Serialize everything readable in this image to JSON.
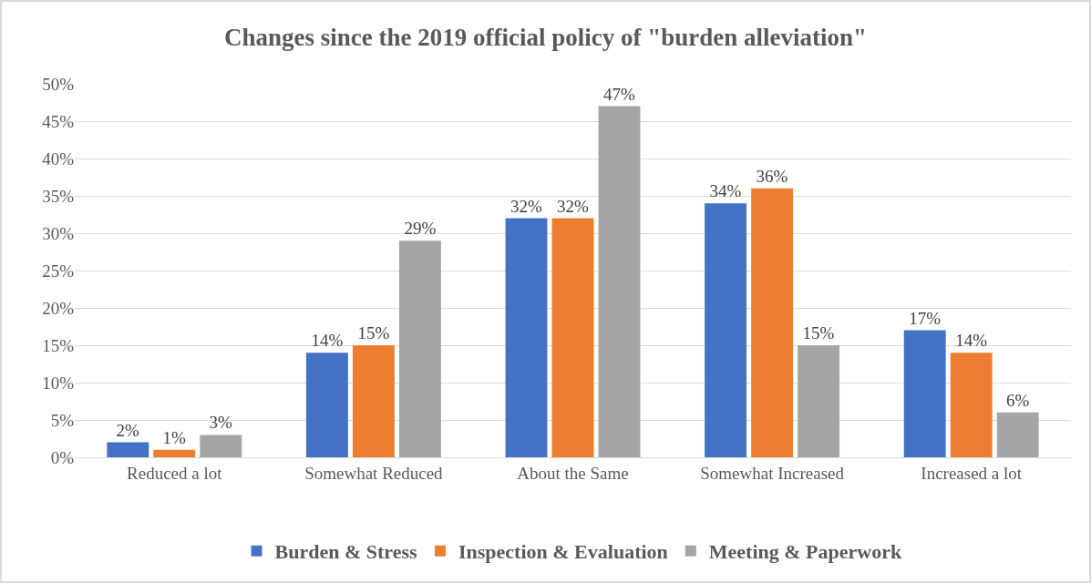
{
  "chart_data": {
    "type": "bar",
    "title": "Changes since the 2019 official policy of \"burden alleviation\"",
    "categories": [
      "Reduced a lot",
      "Somewhat Reduced",
      "About the Same",
      "Somewhat Increased",
      "Increased a lot"
    ],
    "series": [
      {
        "name": "Burden & Stress",
        "color": "#4472c4",
        "values": [
          2,
          14,
          32,
          34,
          17
        ],
        "value_labels": [
          "2%",
          "14%",
          "32%",
          "34%",
          "17%"
        ]
      },
      {
        "name": "Inspection & Evaluation",
        "color": "#ed7d31",
        "values": [
          1,
          15,
          32,
          36,
          14
        ],
        "value_labels": [
          "1%",
          "15%",
          "32%",
          "36%",
          "14%"
        ]
      },
      {
        "name": "Meeting & Paperwork",
        "color": "#a5a5a5",
        "values": [
          3,
          29,
          47,
          15,
          6
        ],
        "value_labels": [
          "3%",
          "29%",
          "47%",
          "15%",
          "6%"
        ]
      }
    ],
    "ylim": [
      0,
      50
    ],
    "yticks": [
      {
        "value": 0,
        "label": "0%"
      },
      {
        "value": 5,
        "label": "5%"
      },
      {
        "value": 10,
        "label": "10%"
      },
      {
        "value": 15,
        "label": "15%"
      },
      {
        "value": 20,
        "label": "20%"
      },
      {
        "value": 25,
        "label": "25%"
      },
      {
        "value": 30,
        "label": "30%"
      },
      {
        "value": 35,
        "label": "35%"
      },
      {
        "value": 40,
        "label": "40%"
      },
      {
        "value": 45,
        "label": "45%"
      },
      {
        "value": 50,
        "label": "50%"
      }
    ],
    "grid": "y",
    "legend": "bottom"
  }
}
